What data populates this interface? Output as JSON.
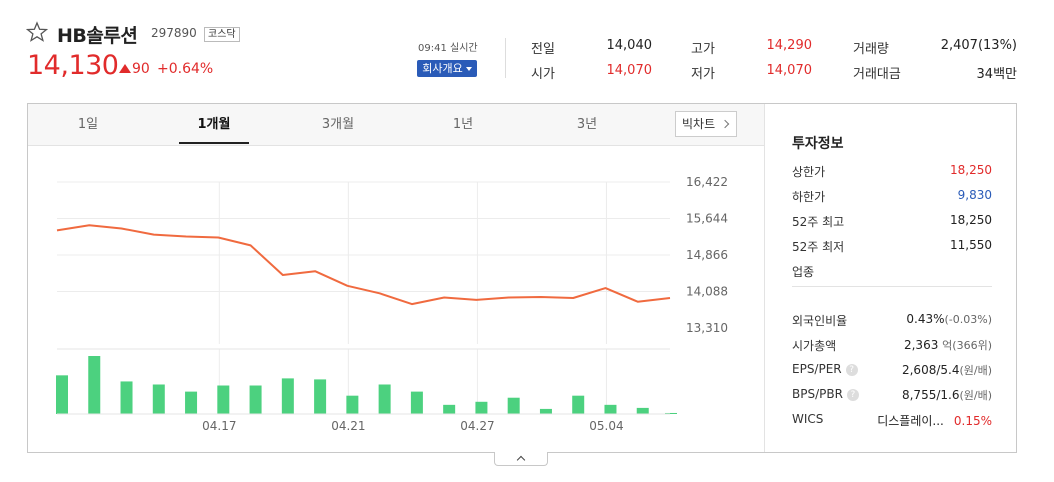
{
  "header": {
    "name": "HB솔루션",
    "code": "297890",
    "market": "코스닥",
    "price": "14,130",
    "change": "90",
    "change_pct": "+0.64%",
    "realtime_label": "09:41 실시간",
    "company_button": "회사개요"
  },
  "quote": {
    "prev_label": "전일",
    "prev_value": "14,040",
    "open_label": "시가",
    "open_value": "14,070",
    "high_label": "고가",
    "high_value": "14,290",
    "low_label": "저가",
    "low_value": "14,070",
    "volume_label": "거래량",
    "volume_value": "2,407(13%)",
    "amount_label": "거래대금",
    "amount_value": "34백만"
  },
  "tabs": [
    {
      "label": "1일"
    },
    {
      "label": "1개월"
    },
    {
      "label": "3개월"
    },
    {
      "label": "1년"
    },
    {
      "label": "3년"
    }
  ],
  "bigchart_label": "빅차트",
  "chart_data": {
    "type": "line",
    "x_ticks": [
      "04.17",
      "04.21",
      "04.27",
      "05.04"
    ],
    "y_ticks": [
      "16,422",
      "15,644",
      "14,866",
      "14,088",
      "13,310"
    ],
    "ylim": [
      13310,
      16422
    ],
    "grid": true,
    "colors": {
      "line": "#f06a3f",
      "volume": "#4cd17f"
    },
    "series": [
      {
        "values": [
          15390,
          15500,
          15430,
          15300,
          15260,
          15240,
          15070,
          14440,
          14520,
          14210,
          14050,
          13820,
          13960,
          13910,
          13960,
          13970,
          13950,
          14160,
          13870,
          13950
        ]
      }
    ],
    "volume": [
      38,
      57,
      32,
      29,
      22,
      28,
      28,
      35,
      34,
      18,
      29,
      22,
      9,
      12,
      16,
      5,
      18,
      9,
      6,
      1
    ]
  },
  "info": {
    "title": "투자정보",
    "upper_limit_label": "상한가",
    "upper_limit": "18,250",
    "lower_limit_label": "하한가",
    "lower_limit": "9,830",
    "high52_label": "52주 최고",
    "high52": "18,250",
    "low52_label": "52주 최저",
    "low52": "11,550",
    "industry_label": "업종",
    "foreign_label": "외국인비율",
    "foreign_value": "0.43%",
    "foreign_change": "(-0.03%)",
    "mcap_label": "시가총액",
    "mcap_value": "2,363",
    "mcap_unit": "억(366위)",
    "eps_label": "EPS/PER",
    "eps_value": "2,608/5.4",
    "eps_unit": "(원/배)",
    "bps_label": "BPS/PBR",
    "bps_value": "8,755/1.6",
    "bps_unit": "(원/배)",
    "wics_label": "WICS",
    "wics_value": "디스플레이...",
    "wics_pct": "0.15%"
  }
}
